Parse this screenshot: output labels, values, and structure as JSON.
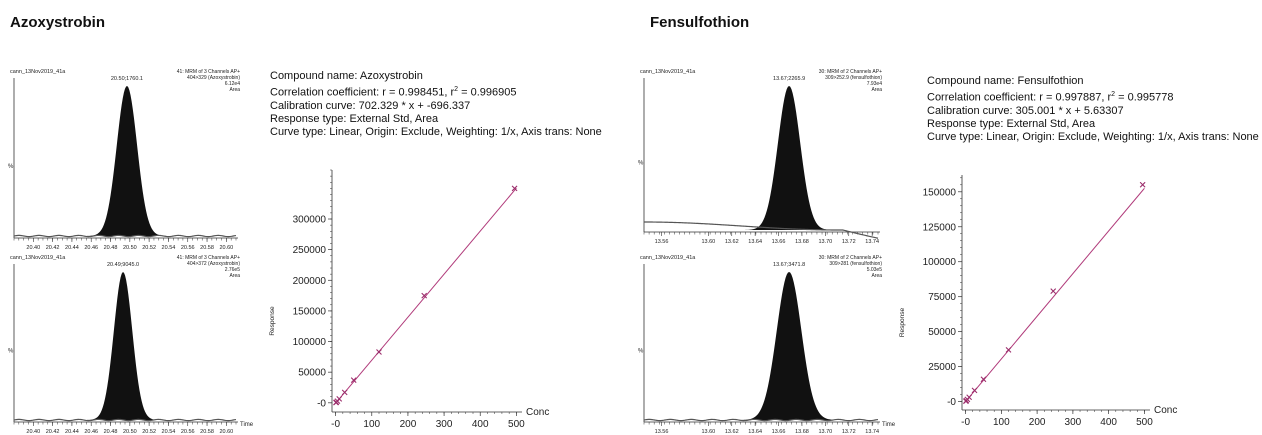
{
  "panels": [
    {
      "title": "Azoxystrobin",
      "info": {
        "compound": "Compound name: Azoxystrobin",
        "corr_prefix": "Correlation coefficient: r = 0.998451, r",
        "corr_sup": "2",
        "corr_suffix": " = 0.996905",
        "curve": "Calibration curve: 702.329 * x + -696.337",
        "response": "Response type: External Std, Area",
        "curve_type": "Curve type: Linear, Origin: Exclude, Weighting: 1/x, Axis trans: None"
      },
      "chromatograms": [
        {
          "file": "cann_13Nov2019_41a",
          "channel": [
            "41: MRM of 3 Channels AP+",
            "404>329 (Azoxystrobin)",
            "6.12e4",
            "Area"
          ],
          "peak_label": "20.50;1760.1",
          "ylabel": "%",
          "xticks": [
            "20.40",
            "20.42",
            "20.44",
            "20.46",
            "20.48",
            "20.50",
            "20.52",
            "20.54",
            "20.56",
            "20.58",
            "20.60"
          ],
          "peak_center": 20.497,
          "peak_sigma": 0.0105,
          "xlim": [
            20.38,
            20.61
          ],
          "time_label": ""
        },
        {
          "file": "cann_13Nov2019_41a",
          "channel": [
            "41: MRM of 3 Channels AP+",
            "404>372 (Azoxystrobin)",
            "2.76e5",
            "Area"
          ],
          "peak_label": "20.49;9045.0",
          "ylabel": "%",
          "xticks": [
            "20.40",
            "20.42",
            "20.44",
            "20.46",
            "20.48",
            "20.50",
            "20.52",
            "20.54",
            "20.56",
            "20.58",
            "20.60"
          ],
          "peak_center": 20.493,
          "peak_sigma": 0.0095,
          "xlim": [
            20.38,
            20.61
          ],
          "time_label": "Time"
        }
      ],
      "chart_data": {
        "type": "scatter",
        "xlabel": "Conc",
        "ylabel": "Response",
        "xlim": [
          -10,
          510
        ],
        "ylim": [
          -15000,
          380000
        ],
        "xticks": [
          0,
          100,
          200,
          300,
          400,
          500
        ],
        "xtick_labels": [
          "-0",
          "100",
          "200",
          "300",
          "400",
          "500"
        ],
        "yticks": [
          0,
          50000,
          100000,
          150000,
          200000,
          250000,
          300000
        ],
        "ytick_labels": [
          "-0",
          "50000",
          "100000",
          "150000",
          "200000",
          "250000",
          "300000"
        ],
        "points": [
          [
            1,
            400
          ],
          [
            2,
            900
          ],
          [
            5,
            2800
          ],
          [
            10,
            6500
          ],
          [
            25,
            17000
          ],
          [
            50,
            37000
          ],
          [
            120,
            83000
          ],
          [
            245,
            175000
          ],
          [
            495,
            350000
          ]
        ],
        "fit": {
          "slope": 702.329,
          "intercept": -696.337,
          "x_range": [
            0,
            500
          ]
        },
        "point_color": "#9b2d6b",
        "line_color": "#b03a7a"
      }
    },
    {
      "title": "Fensulfothion",
      "info": {
        "compound": "Compound name: Fensulfothion",
        "corr_prefix": "Correlation coefficient: r = 0.997887, r",
        "corr_sup": "2",
        "corr_suffix": " = 0.995778",
        "curve": "Calibration curve: 305.001 * x + 5.63307",
        "response": "Response type: External Std, Area",
        "curve_type": "Curve type: Linear, Origin: Exclude, Weighting: 1/x, Axis trans: None"
      },
      "chromatograms": [
        {
          "file": "cann_13Nov2019_41a",
          "channel": [
            "30: MRM of 2 Channels AP+",
            "309>252.9 (fensulfothion)",
            "7.93e4",
            "Area"
          ],
          "peak_label": "13.67;2265.9",
          "ylabel": "%",
          "xticks": [
            "13.56",
            "13.60",
            "13.62",
            "13.64",
            "13.66",
            "13.68",
            "13.70",
            "13.72",
            "13.74"
          ],
          "peak_center": 13.669,
          "peak_sigma": 0.0095,
          "xlim": [
            13.545,
            13.745
          ],
          "time_label": ""
        },
        {
          "file": "cann_13Nov2019_41a",
          "channel": [
            "30: MRM of 2 Channels AP+",
            "309>281 (fensulfothion)",
            "5.03e5",
            "Area"
          ],
          "peak_label": "13.67;3471.8",
          "ylabel": "%",
          "xticks": [
            "13.56",
            "13.60",
            "13.62",
            "13.64",
            "13.66",
            "13.68",
            "13.70",
            "13.72",
            "13.74"
          ],
          "peak_center": 13.669,
          "peak_sigma": 0.0105,
          "xlim": [
            13.545,
            13.745
          ],
          "time_label": "Time"
        }
      ],
      "chart_data": {
        "type": "scatter",
        "xlabel": "Conc",
        "ylabel": "Response",
        "xlim": [
          -10,
          510
        ],
        "ylim": [
          -6000,
          162000
        ],
        "xticks": [
          0,
          100,
          200,
          300,
          400,
          500
        ],
        "xtick_labels": [
          "-0",
          "100",
          "200",
          "300",
          "400",
          "500"
        ],
        "yticks": [
          0,
          25000,
          50000,
          75000,
          100000,
          125000,
          150000
        ],
        "ytick_labels": [
          "-0",
          "25000",
          "50000",
          "75000",
          "100000",
          "125000",
          "150000"
        ],
        "points": [
          [
            1,
            300
          ],
          [
            2,
            700
          ],
          [
            5,
            1600
          ],
          [
            10,
            3100
          ],
          [
            25,
            8000
          ],
          [
            50,
            16000
          ],
          [
            120,
            37000
          ],
          [
            245,
            79000
          ],
          [
            495,
            155000
          ]
        ],
        "fit": {
          "slope": 305.001,
          "intercept": 5.63307,
          "x_range": [
            0,
            500
          ]
        },
        "point_color": "#9b2d6b",
        "line_color": "#b03a7a"
      }
    }
  ]
}
